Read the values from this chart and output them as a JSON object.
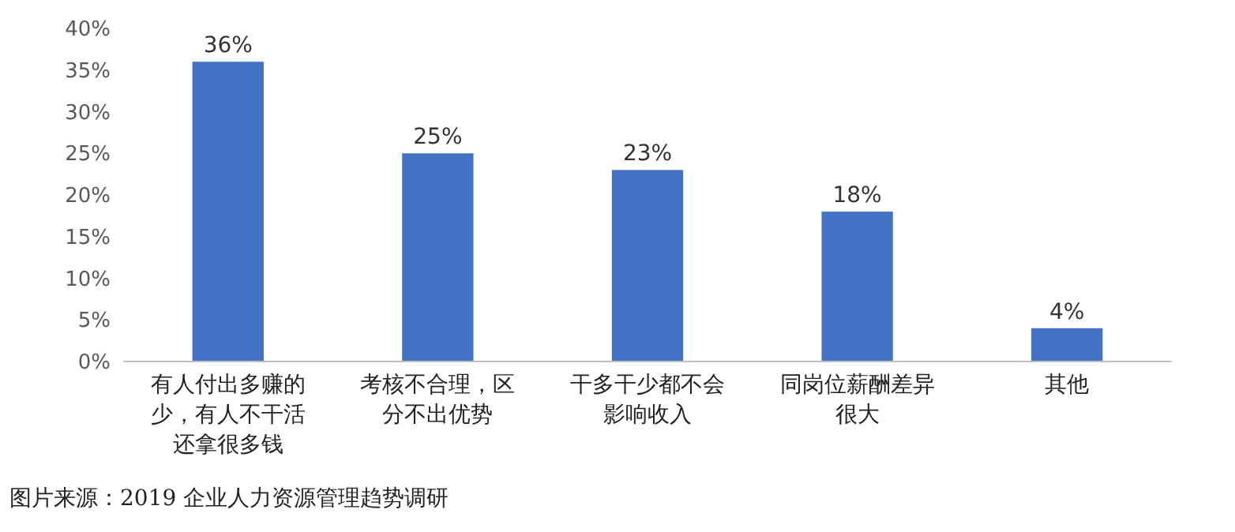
{
  "chart_data": {
    "type": "bar",
    "categories": [
      "有人付出多赚的少，有人不干活还拿很多钱",
      "考核不合理，区分不出优势",
      "干多干少都不会影响收入",
      "同岗位薪酬差异很大",
      "其他"
    ],
    "values": [
      36,
      25,
      23,
      18,
      4
    ],
    "value_labels": [
      "36%",
      "25%",
      "23%",
      "18%",
      "4%"
    ],
    "color": "#4472c4",
    "ylim": [
      0,
      40
    ],
    "yticks": [
      {
        "value": 0,
        "label": "0%"
      },
      {
        "value": 5,
        "label": "5%"
      },
      {
        "value": 10,
        "label": "10%"
      },
      {
        "value": 15,
        "label": "15%"
      },
      {
        "value": 20,
        "label": "20%"
      },
      {
        "value": 25,
        "label": "25%"
      },
      {
        "value": 30,
        "label": "30%"
      },
      {
        "value": 35,
        "label": "35%"
      },
      {
        "value": 40,
        "label": "40%"
      }
    ],
    "grid": false,
    "annotations": [
      "图片来源：2019 企业人力资源管理趋势调研"
    ]
  }
}
